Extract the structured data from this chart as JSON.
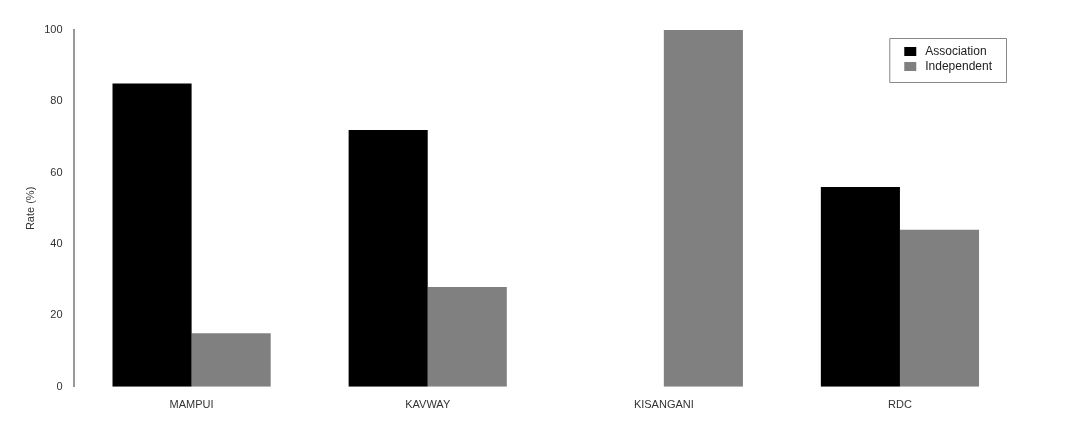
{
  "chart_data": {
    "type": "bar",
    "ylabel": "Rate (%)",
    "categories": [
      "MAMPUI",
      "KAVWAY",
      "KISANGANI",
      "RDC"
    ],
    "series": [
      {
        "name": "Association",
        "color": "#000000",
        "values": [
          85,
          72,
          0,
          56
        ]
      },
      {
        "name": "Independent",
        "color": "#808080",
        "values": [
          15,
          28,
          100,
          44
        ]
      }
    ],
    "ylim": [
      0,
      100
    ],
    "yticks": [
      0,
      20,
      40,
      60,
      80,
      100
    ],
    "grid": false,
    "legend": "top right"
  }
}
